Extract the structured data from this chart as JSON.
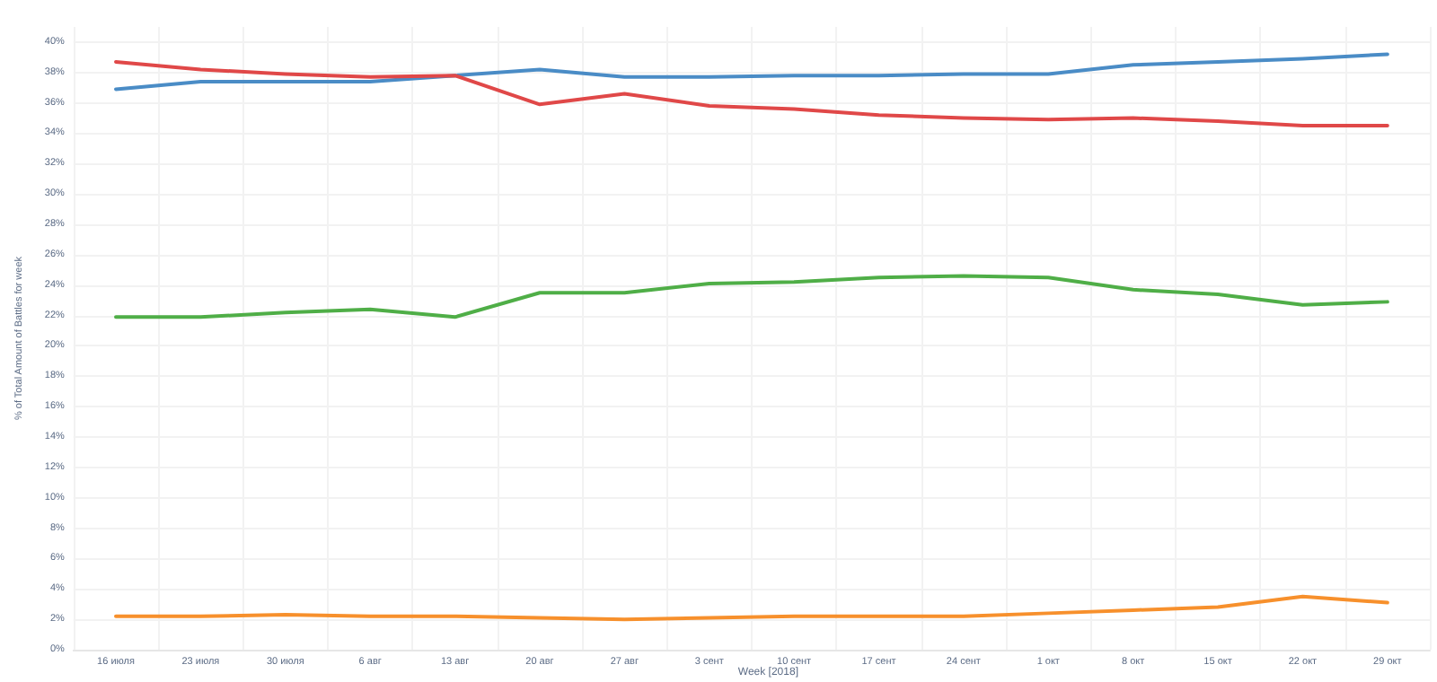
{
  "chart_data": {
    "type": "line",
    "xlabel": "Week [2018]",
    "ylabel": "% of Total Amount of Battles for week",
    "categories": [
      "16 июля",
      "23 июля",
      "30 июля",
      "6 авг",
      "13 авг",
      "20 авг",
      "27 авг",
      "3 сент",
      "10 сент",
      "17 сент",
      "24 сент",
      "1 окт",
      "8 окт",
      "15 окт",
      "22 окт",
      "29 окт"
    ],
    "series": [
      {
        "color": "#4a8cc6",
        "values": [
          36.9,
          37.4,
          37.4,
          37.4,
          37.8,
          38.2,
          37.7,
          37.7,
          37.8,
          37.8,
          37.9,
          37.9,
          38.5,
          38.7,
          38.9,
          39.2
        ]
      },
      {
        "color": "#e04848",
        "values": [
          38.7,
          38.2,
          37.9,
          37.7,
          37.8,
          35.9,
          36.6,
          35.8,
          35.6,
          35.2,
          35.0,
          34.9,
          35.0,
          34.8,
          34.5,
          34.5
        ]
      },
      {
        "color": "#4fae47",
        "values": [
          21.9,
          21.9,
          22.2,
          22.4,
          21.9,
          23.5,
          23.5,
          24.1,
          24.2,
          24.5,
          24.6,
          24.5,
          23.7,
          23.4,
          22.7,
          22.9
        ]
      },
      {
        "color": "#f7902c",
        "values": [
          2.2,
          2.2,
          2.3,
          2.2,
          2.2,
          2.1,
          2.0,
          2.1,
          2.2,
          2.2,
          2.2,
          2.4,
          2.6,
          2.8,
          3.5,
          3.1
        ]
      }
    ],
    "ylim": [
      0,
      41
    ],
    "yticks": [
      {
        "value": 0,
        "label": "0%"
      },
      {
        "value": 2,
        "label": "2%"
      },
      {
        "value": 4,
        "label": "4%"
      },
      {
        "value": 6,
        "label": "6%"
      },
      {
        "value": 8,
        "label": "8%"
      },
      {
        "value": 10,
        "label": "10%"
      },
      {
        "value": 12,
        "label": "12%"
      },
      {
        "value": 14,
        "label": "14%"
      },
      {
        "value": 16,
        "label": "16%"
      },
      {
        "value": 18,
        "label": "18%"
      },
      {
        "value": 20,
        "label": "20%"
      },
      {
        "value": 22,
        "label": "22%"
      },
      {
        "value": 24,
        "label": "24%"
      },
      {
        "value": 26,
        "label": "26%"
      },
      {
        "value": 28,
        "label": "28%"
      },
      {
        "value": 30,
        "label": "30%"
      },
      {
        "value": 32,
        "label": "32%"
      },
      {
        "value": 34,
        "label": "34%"
      },
      {
        "value": 36,
        "label": "36%"
      },
      {
        "value": 38,
        "label": "38%"
      },
      {
        "value": 40,
        "label": "40%"
      }
    ],
    "grid": true,
    "marker": "none",
    "line_style": "solid"
  }
}
